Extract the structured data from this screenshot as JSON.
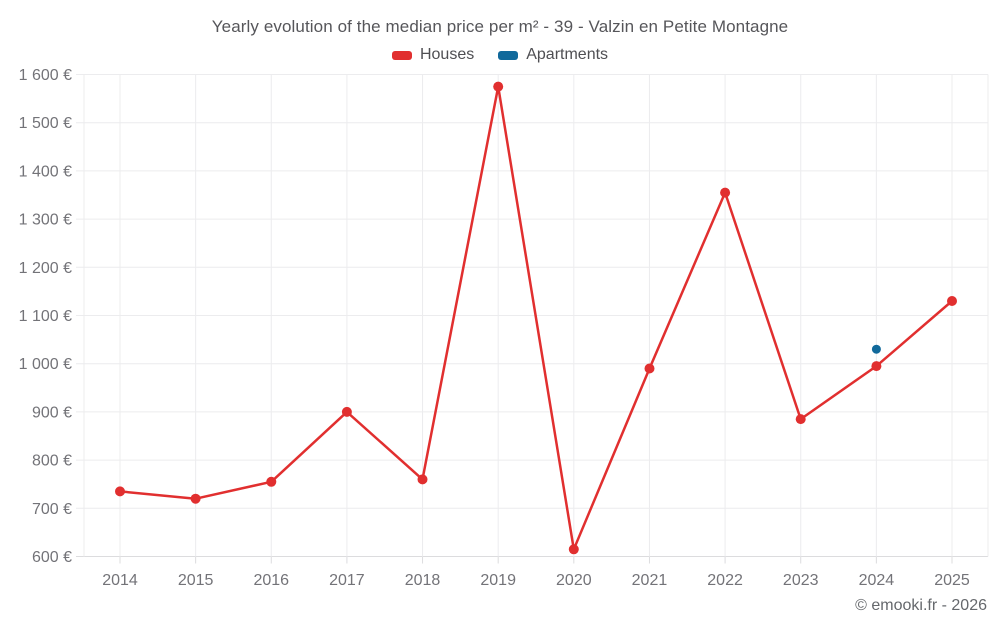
{
  "page": {
    "copyright": "© emooki.fr - 2026",
    "background_color": "#ffffff",
    "grid_color": "#ececee",
    "axis_line_color": "#dcdcde",
    "text_color": "#56565a",
    "tick_label_color": "#737378"
  },
  "chart_data": {
    "type": "line",
    "title": "Yearly evolution of the median price per m² - 39 - Valzin en Petite Montagne",
    "xlabel": "",
    "ylabel": "",
    "x": [
      2014,
      2015,
      2016,
      2017,
      2018,
      2019,
      2020,
      2021,
      2022,
      2023,
      2024,
      2025
    ],
    "xtick_labels": [
      "2014",
      "2015",
      "2016",
      "2017",
      "2018",
      "2019",
      "2020",
      "2021",
      "2022",
      "2023",
      "2024",
      "2025"
    ],
    "series": [
      {
        "name": "Houses",
        "color": "#e12f2f",
        "marker_radius": 5,
        "values": [
          735,
          720,
          755,
          900,
          760,
          1575,
          615,
          990,
          1355,
          885,
          995,
          1130
        ]
      },
      {
        "name": "Apartments",
        "color": "#11699b",
        "marker_radius": 4.5,
        "values": [
          null,
          null,
          null,
          null,
          null,
          null,
          null,
          null,
          null,
          null,
          1030,
          null
        ]
      }
    ],
    "ylim": [
      600,
      1600
    ],
    "yticks": [
      600,
      700,
      800,
      900,
      1000,
      1100,
      1200,
      1300,
      1400,
      1500,
      1600
    ],
    "ytick_labels": [
      "600 €",
      "700 €",
      "800 €",
      "900 €",
      "1 000 €",
      "1 100 €",
      "1 200 €",
      "1 300 €",
      "1 400 €",
      "1 500 €",
      "1 600 €"
    ],
    "grid": true,
    "legend_position": "top",
    "currency": "€"
  }
}
